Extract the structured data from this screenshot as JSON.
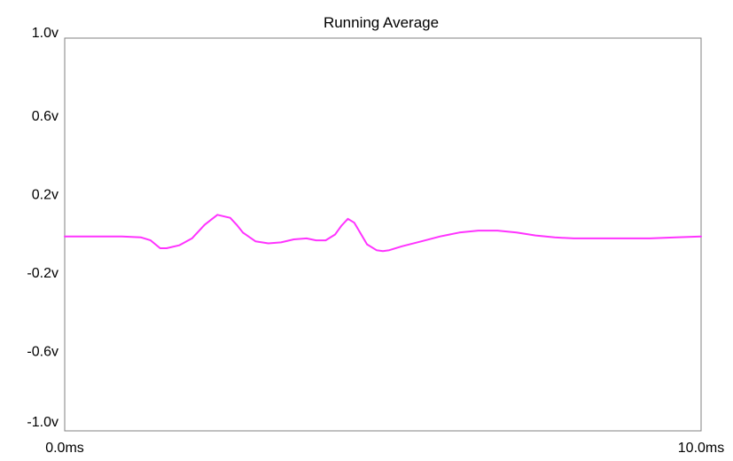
{
  "chart_data": {
    "type": "line",
    "title": "Running Average",
    "xlabel": "",
    "ylabel": "",
    "x_unit": "ms",
    "y_unit": "v",
    "xlim": [
      0.0,
      10.0
    ],
    "ylim": [
      -1.0,
      1.0
    ],
    "x_ticks": [
      "0.0ms",
      "10.0ms"
    ],
    "y_ticks": [
      "1.0v",
      "0.6v",
      "0.2v",
      "-0.2v",
      "-0.6v",
      "-1.0v"
    ],
    "y_tick_values": [
      1.0,
      0.6,
      0.2,
      -0.2,
      -0.6,
      -1.0
    ],
    "grid": false,
    "legend": "none",
    "colors": {
      "line": "#ff33ff",
      "axes": "#808080",
      "background": "#ffffff"
    },
    "series": [
      {
        "values_x": [
          0.0,
          0.3,
          0.6,
          0.9,
          1.2,
          1.35,
          1.5,
          1.6,
          1.8,
          2.0,
          2.2,
          2.4,
          2.6,
          2.7,
          2.8,
          3.0,
          3.2,
          3.4,
          3.6,
          3.8,
          3.95,
          4.1,
          4.25,
          4.35,
          4.45,
          4.55,
          4.65,
          4.75,
          4.9,
          5.0,
          5.1,
          5.3,
          5.6,
          5.9,
          6.2,
          6.5,
          6.8,
          7.1,
          7.4,
          7.7,
          8.0,
          8.4,
          8.8,
          9.2,
          9.6,
          10.0
        ],
        "values_y": [
          -0.01,
          -0.01,
          -0.01,
          -0.01,
          -0.015,
          -0.03,
          -0.07,
          -0.07,
          -0.055,
          -0.02,
          0.05,
          0.1,
          0.085,
          0.05,
          0.01,
          -0.035,
          -0.045,
          -0.04,
          -0.025,
          -0.02,
          -0.03,
          -0.03,
          0.0,
          0.045,
          0.08,
          0.06,
          0.005,
          -0.05,
          -0.08,
          -0.085,
          -0.08,
          -0.06,
          -0.035,
          -0.01,
          0.01,
          0.02,
          0.02,
          0.01,
          -0.005,
          -0.015,
          -0.02,
          -0.02,
          -0.02,
          -0.02,
          -0.015,
          -0.01
        ]
      }
    ]
  }
}
